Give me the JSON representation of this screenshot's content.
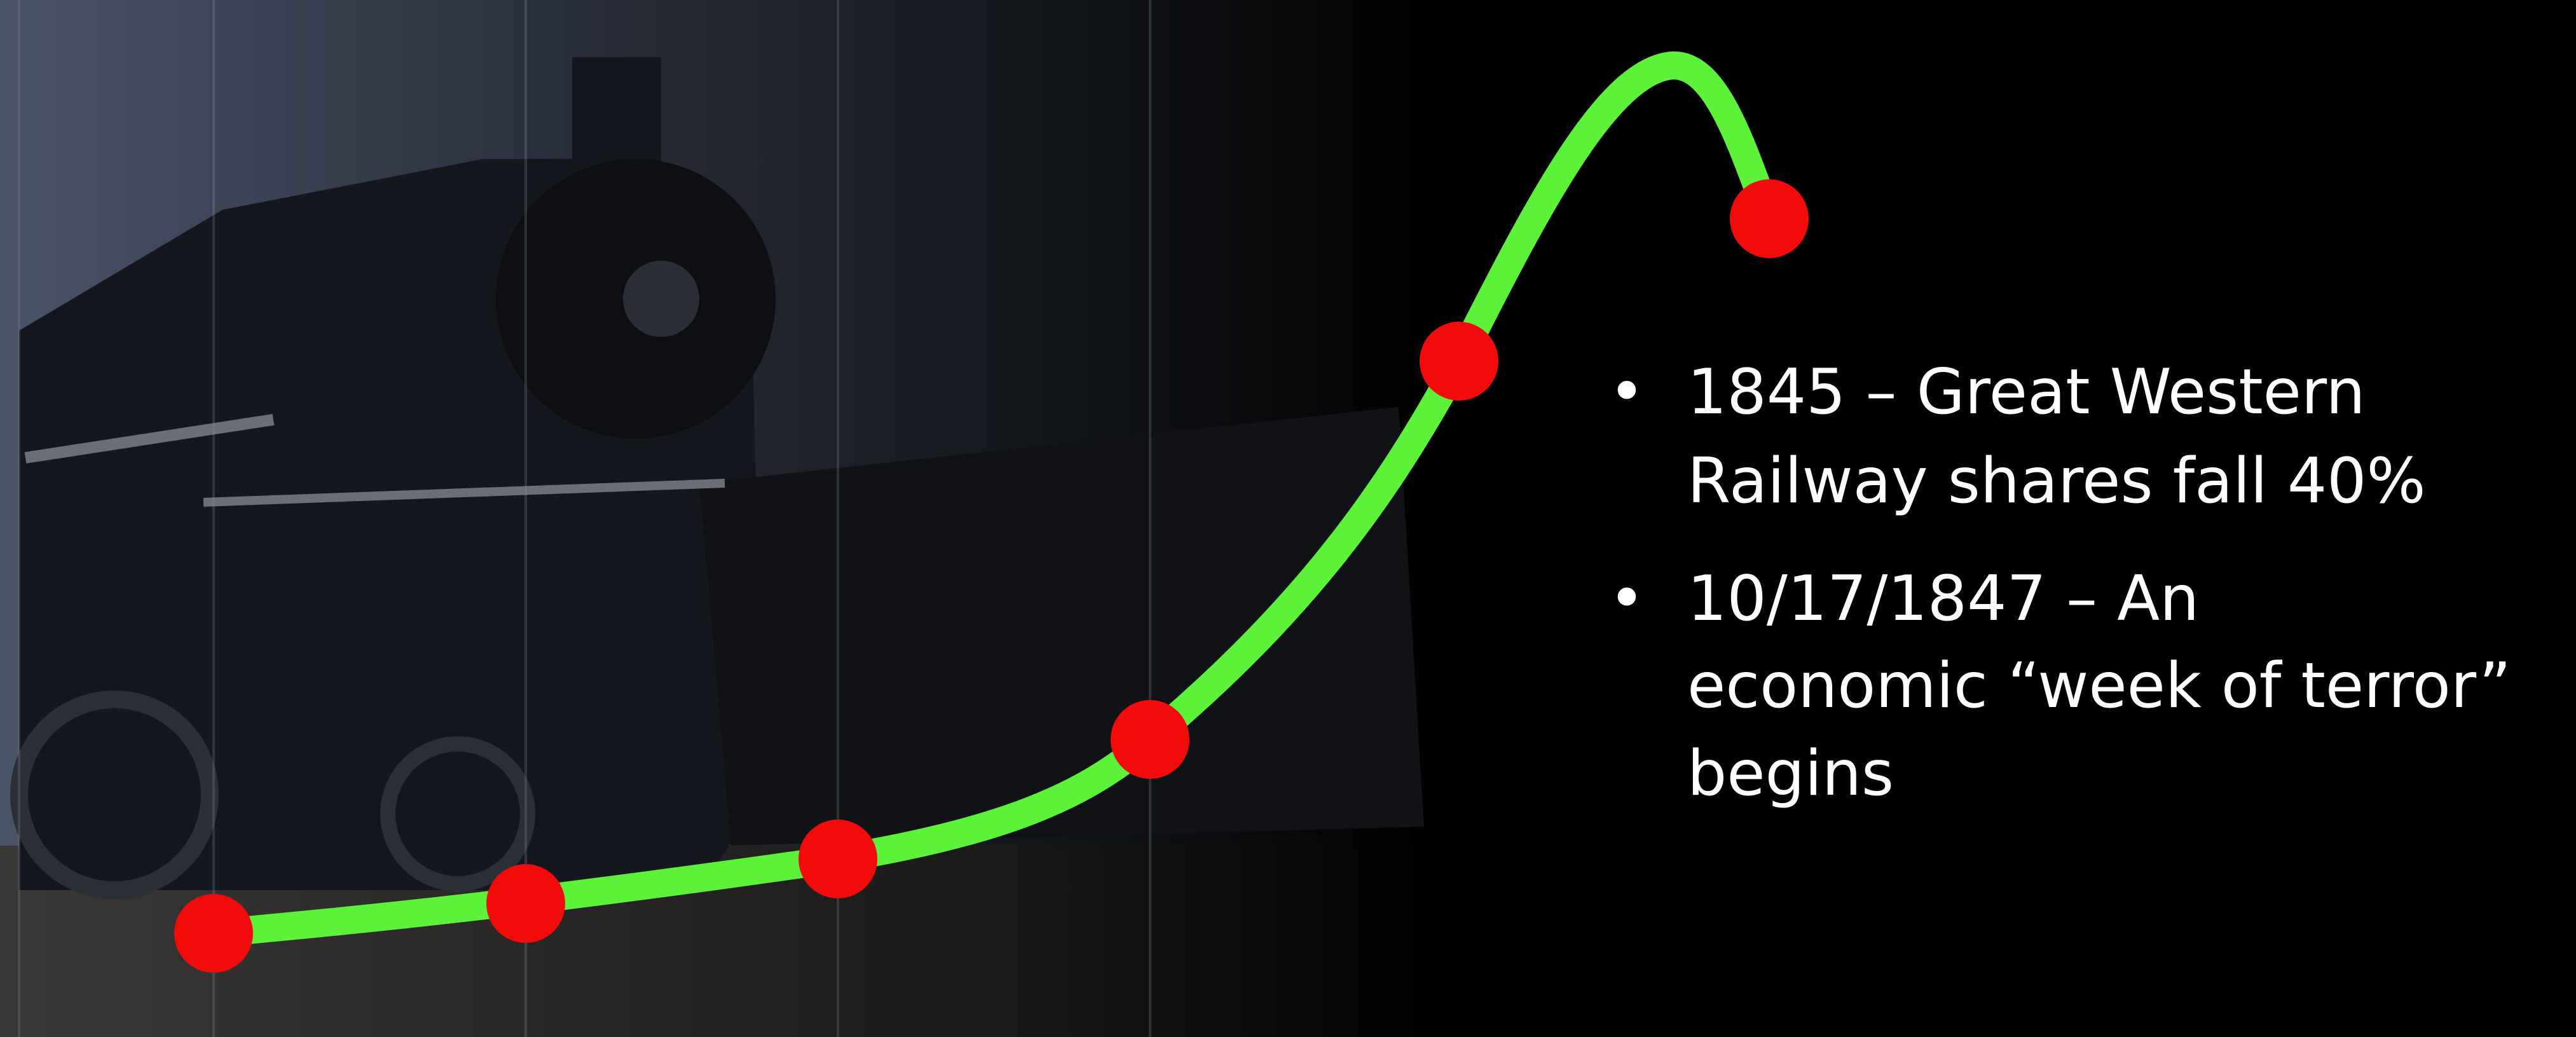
{
  "bullets": [
    {
      "lines": [
        "1845 – Great Western",
        "Railway shares fall 40%"
      ]
    },
    {
      "lines": [
        "10/17/1847 – An",
        "economic “week of terror”",
        "begins"
      ]
    }
  ]
}
